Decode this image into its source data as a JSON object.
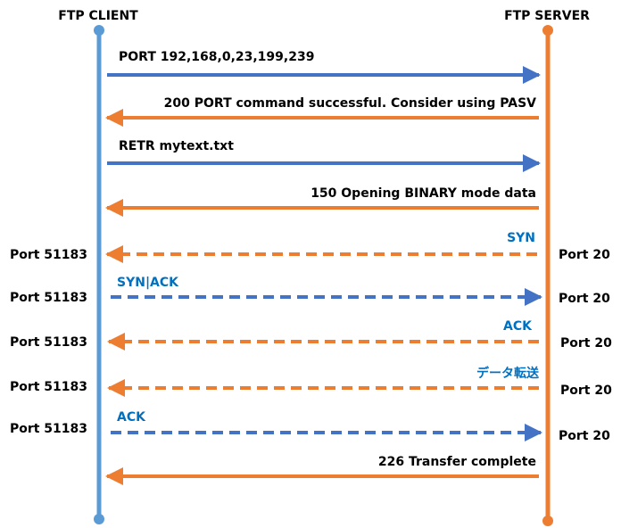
{
  "client": {
    "title": "FTP CLIENT"
  },
  "server": {
    "title": "FTP SERVER"
  },
  "colors": {
    "client_line": "#5b9bd5",
    "server_line": "#ed7d31",
    "client_arrow": "#4472c4",
    "server_arrow": "#ed7d31",
    "data_label": "#0070c0"
  },
  "messages": [
    {
      "text": "PORT 192,168,0,23,199,239",
      "dir": "to-server",
      "style": "solid"
    },
    {
      "text": "200 PORT command successful. Consider using PASV",
      "dir": "to-client",
      "style": "solid"
    },
    {
      "text": "RETR mytext.txt",
      "dir": "to-server",
      "style": "solid"
    },
    {
      "text": "150 Opening BINARY mode data",
      "dir": "to-client",
      "style": "solid"
    },
    {
      "text": "SYN",
      "dir": "to-client",
      "style": "dashed",
      "client_port": "Port 51183",
      "server_port": "Port 20"
    },
    {
      "text": "SYN|ACK",
      "dir": "to-server",
      "style": "dashed",
      "client_port": "Port 51183",
      "server_port": "Port 20"
    },
    {
      "text": "ACK",
      "dir": "to-client",
      "style": "dashed",
      "client_port": "Port 51183",
      "server_port": "Port 20"
    },
    {
      "text": "データ転送",
      "dir": "to-client",
      "style": "dashed",
      "client_port": "Port 51183",
      "server_port": "Port 20"
    },
    {
      "text": "ACK",
      "dir": "to-server",
      "style": "dashed",
      "client_port": "Port 51183",
      "server_port": "Port 20"
    },
    {
      "text": "226 Transfer complete",
      "dir": "to-client",
      "style": "solid"
    }
  ]
}
